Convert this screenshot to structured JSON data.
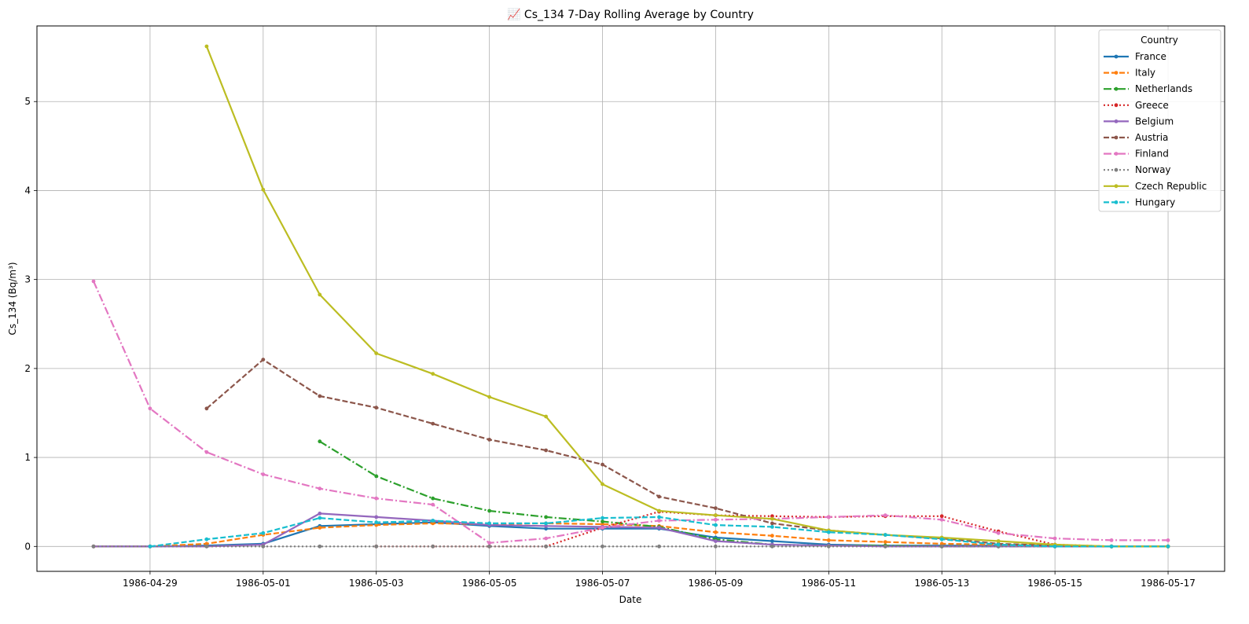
{
  "chart_data": {
    "type": "line",
    "title": "📈 Cs_134 7-Day Rolling Average by Country",
    "xlabel": "Date",
    "ylabel": "Cs_134 (Bq/m³)",
    "xlim": [
      "1986-04-27",
      "1986-05-18"
    ],
    "ylim": [
      -0.28,
      5.85
    ],
    "x_ticks": [
      "1986-04-29",
      "1986-05-01",
      "1986-05-03",
      "1986-05-05",
      "1986-05-07",
      "1986-05-09",
      "1986-05-11",
      "1986-05-13",
      "1986-05-15",
      "1986-05-17"
    ],
    "y_ticks": [
      0,
      1,
      2,
      3,
      4,
      5
    ],
    "grid": true,
    "legend": {
      "title": "Country",
      "placement": "top-right"
    },
    "series": [
      {
        "name": "France",
        "color": "#1f77b4",
        "dash": "solid",
        "points": [
          [
            "1986-04-28",
            0.0
          ],
          [
            "1986-04-29",
            0.0
          ],
          [
            "1986-04-30",
            0.01
          ],
          [
            "1986-05-01",
            0.03
          ],
          [
            "1986-05-02",
            0.23
          ],
          [
            "1986-05-03",
            0.25
          ],
          [
            "1986-05-04",
            0.27
          ],
          [
            "1986-05-05",
            0.23
          ],
          [
            "1986-05-06",
            0.2
          ],
          [
            "1986-05-07",
            0.2
          ],
          [
            "1986-05-08",
            0.2
          ],
          [
            "1986-05-09",
            0.1
          ],
          [
            "1986-05-10",
            0.06
          ],
          [
            "1986-05-11",
            0.02
          ],
          [
            "1986-05-12",
            0.01
          ],
          [
            "1986-05-13",
            0.01
          ],
          [
            "1986-05-14",
            0.01
          ],
          [
            "1986-05-15",
            0.0
          ],
          [
            "1986-05-16",
            0.0
          ],
          [
            "1986-05-17",
            0.0
          ]
        ]
      },
      {
        "name": "Italy",
        "color": "#ff7f0e",
        "dash": "dashed",
        "points": [
          [
            "1986-04-28",
            0.0
          ],
          [
            "1986-04-29",
            0.0
          ],
          [
            "1986-04-30",
            0.03
          ],
          [
            "1986-05-01",
            0.13
          ],
          [
            "1986-05-02",
            0.21
          ],
          [
            "1986-05-03",
            0.24
          ],
          [
            "1986-05-04",
            0.26
          ],
          [
            "1986-05-05",
            0.25
          ],
          [
            "1986-05-06",
            0.26
          ],
          [
            "1986-05-07",
            0.25
          ],
          [
            "1986-05-08",
            0.23
          ],
          [
            "1986-05-09",
            0.16
          ],
          [
            "1986-05-10",
            0.12
          ],
          [
            "1986-05-11",
            0.07
          ],
          [
            "1986-05-12",
            0.05
          ],
          [
            "1986-05-13",
            0.03
          ],
          [
            "1986-05-14",
            0.02
          ],
          [
            "1986-05-15",
            0.01
          ],
          [
            "1986-05-16",
            0.0
          ],
          [
            "1986-05-17",
            0.0
          ]
        ]
      },
      {
        "name": "Netherlands",
        "color": "#2ca02c",
        "dash": "dashdot",
        "points": [
          [
            "1986-05-02",
            1.18
          ],
          [
            "1986-05-03",
            0.79
          ],
          [
            "1986-05-04",
            0.54
          ],
          [
            "1986-05-05",
            0.4
          ],
          [
            "1986-05-06",
            0.33
          ],
          [
            "1986-05-07",
            0.28
          ],
          [
            "1986-05-08",
            0.22
          ],
          [
            "1986-05-09",
            0.08
          ],
          [
            "1986-05-10",
            0.02
          ],
          [
            "1986-05-11",
            0.01
          ],
          [
            "1986-05-12",
            0.01
          ],
          [
            "1986-05-13",
            0.0
          ],
          [
            "1986-05-14",
            0.0
          ],
          [
            "1986-05-15",
            0.0
          ],
          [
            "1986-05-16",
            0.0
          ],
          [
            "1986-05-17",
            0.0
          ]
        ]
      },
      {
        "name": "Greece",
        "color": "#d62728",
        "dash": "dotted",
        "points": [
          [
            "1986-05-03",
            0.0
          ],
          [
            "1986-05-04",
            0.0
          ],
          [
            "1986-05-05",
            0.0
          ],
          [
            "1986-05-06",
            0.0
          ],
          [
            "1986-05-07",
            0.21
          ],
          [
            "1986-05-08",
            0.39
          ],
          [
            "1986-05-09",
            0.35
          ],
          [
            "1986-05-10",
            0.34
          ],
          [
            "1986-05-11",
            0.33
          ],
          [
            "1986-05-12",
            0.34
          ],
          [
            "1986-05-13",
            0.34
          ],
          [
            "1986-05-14",
            0.17
          ],
          [
            "1986-05-15",
            0.02
          ],
          [
            "1986-05-16",
            0.0
          ],
          [
            "1986-05-17",
            0.0
          ]
        ]
      },
      {
        "name": "Belgium",
        "color": "#9467bd",
        "dash": "solid",
        "points": [
          [
            "1986-04-28",
            0.0
          ],
          [
            "1986-04-29",
            0.0
          ],
          [
            "1986-04-30",
            0.0
          ],
          [
            "1986-05-01",
            0.02
          ],
          [
            "1986-05-02",
            0.37
          ],
          [
            "1986-05-03",
            0.33
          ],
          [
            "1986-05-04",
            0.29
          ],
          [
            "1986-05-05",
            0.24
          ],
          [
            "1986-05-06",
            0.23
          ],
          [
            "1986-05-07",
            0.22
          ],
          [
            "1986-05-08",
            0.21
          ],
          [
            "1986-05-09",
            0.06
          ],
          [
            "1986-05-10",
            0.02
          ],
          [
            "1986-05-11",
            0.01
          ],
          [
            "1986-05-12",
            0.0
          ],
          [
            "1986-05-13",
            0.0
          ],
          [
            "1986-05-14",
            0.0
          ],
          [
            "1986-05-15",
            0.0
          ],
          [
            "1986-05-16",
            0.0
          ],
          [
            "1986-05-17",
            0.0
          ]
        ]
      },
      {
        "name": "Austria",
        "color": "#8c564b",
        "dash": "dashed",
        "points": [
          [
            "1986-04-30",
            1.55
          ],
          [
            "1986-05-01",
            2.1
          ],
          [
            "1986-05-02",
            1.69
          ],
          [
            "1986-05-03",
            1.56
          ],
          [
            "1986-05-04",
            1.38
          ],
          [
            "1986-05-05",
            1.2
          ],
          [
            "1986-05-06",
            1.08
          ],
          [
            "1986-05-07",
            0.92
          ],
          [
            "1986-05-08",
            0.56
          ],
          [
            "1986-05-09",
            0.43
          ],
          [
            "1986-05-10",
            0.26
          ],
          [
            "1986-05-11",
            0.18
          ],
          [
            "1986-05-12",
            0.13
          ],
          [
            "1986-05-13",
            0.09
          ],
          [
            "1986-05-14",
            0.03
          ],
          [
            "1986-05-15",
            0.01
          ],
          [
            "1986-05-16",
            0.0
          ],
          [
            "1986-05-17",
            0.0
          ]
        ]
      },
      {
        "name": "Finland",
        "color": "#e377c2",
        "dash": "dashdot",
        "points": [
          [
            "1986-04-28",
            2.98
          ],
          [
            "1986-04-29",
            1.55
          ],
          [
            "1986-04-30",
            1.06
          ],
          [
            "1986-05-01",
            0.81
          ],
          [
            "1986-05-02",
            0.65
          ],
          [
            "1986-05-03",
            0.54
          ],
          [
            "1986-05-04",
            0.47
          ],
          [
            "1986-05-05",
            0.04
          ],
          [
            "1986-05-06",
            0.09
          ],
          [
            "1986-05-07",
            0.21
          ],
          [
            "1986-05-08",
            0.29
          ],
          [
            "1986-05-09",
            0.3
          ],
          [
            "1986-05-10",
            0.31
          ],
          [
            "1986-05-11",
            0.33
          ],
          [
            "1986-05-12",
            0.35
          ],
          [
            "1986-05-13",
            0.3
          ],
          [
            "1986-05-14",
            0.15
          ],
          [
            "1986-05-15",
            0.09
          ],
          [
            "1986-05-16",
            0.07
          ],
          [
            "1986-05-17",
            0.07
          ]
        ]
      },
      {
        "name": "Norway",
        "color": "#7f7f7f",
        "dash": "dotted",
        "points": [
          [
            "1986-04-28",
            0.0
          ],
          [
            "1986-04-29",
            0.0
          ],
          [
            "1986-04-30",
            0.0
          ],
          [
            "1986-05-01",
            0.0
          ],
          [
            "1986-05-02",
            0.0
          ],
          [
            "1986-05-03",
            0.0
          ],
          [
            "1986-05-04",
            0.0
          ],
          [
            "1986-05-05",
            0.0
          ],
          [
            "1986-05-06",
            0.0
          ],
          [
            "1986-05-07",
            0.0
          ],
          [
            "1986-05-08",
            0.0
          ],
          [
            "1986-05-09",
            0.0
          ],
          [
            "1986-05-10",
            0.0
          ],
          [
            "1986-05-11",
            0.0
          ],
          [
            "1986-05-12",
            0.0
          ],
          [
            "1986-05-13",
            0.0
          ],
          [
            "1986-05-14",
            0.0
          ],
          [
            "1986-05-15",
            0.0
          ],
          [
            "1986-05-16",
            0.0
          ],
          [
            "1986-05-17",
            0.0
          ]
        ]
      },
      {
        "name": "Czech Republic",
        "color": "#bcbd22",
        "dash": "solid",
        "points": [
          [
            "1986-04-30",
            5.62
          ],
          [
            "1986-05-01",
            4.01
          ],
          [
            "1986-05-02",
            2.83
          ],
          [
            "1986-05-03",
            2.17
          ],
          [
            "1986-05-04",
            1.94
          ],
          [
            "1986-05-05",
            1.68
          ],
          [
            "1986-05-06",
            1.46
          ],
          [
            "1986-05-07",
            0.7
          ],
          [
            "1986-05-08",
            0.4
          ],
          [
            "1986-05-09",
            0.35
          ],
          [
            "1986-05-10",
            0.31
          ],
          [
            "1986-05-11",
            0.18
          ],
          [
            "1986-05-12",
            0.13
          ],
          [
            "1986-05-13",
            0.1
          ],
          [
            "1986-05-14",
            0.06
          ],
          [
            "1986-05-15",
            0.02
          ],
          [
            "1986-05-16",
            0.0
          ],
          [
            "1986-05-17",
            0.0
          ]
        ]
      },
      {
        "name": "Hungary",
        "color": "#17becf",
        "dash": "dashed",
        "points": [
          [
            "1986-04-29",
            0.0
          ],
          [
            "1986-04-30",
            0.08
          ],
          [
            "1986-05-01",
            0.15
          ],
          [
            "1986-05-02",
            0.32
          ],
          [
            "1986-05-03",
            0.27
          ],
          [
            "1986-05-04",
            0.29
          ],
          [
            "1986-05-05",
            0.26
          ],
          [
            "1986-05-06",
            0.26
          ],
          [
            "1986-05-07",
            0.32
          ],
          [
            "1986-05-08",
            0.33
          ],
          [
            "1986-05-09",
            0.24
          ],
          [
            "1986-05-10",
            0.22
          ],
          [
            "1986-05-11",
            0.16
          ],
          [
            "1986-05-12",
            0.13
          ],
          [
            "1986-05-13",
            0.08
          ],
          [
            "1986-05-14",
            0.02
          ],
          [
            "1986-05-15",
            0.0
          ],
          [
            "1986-05-16",
            0.0
          ],
          [
            "1986-05-17",
            0.0
          ]
        ]
      }
    ]
  }
}
